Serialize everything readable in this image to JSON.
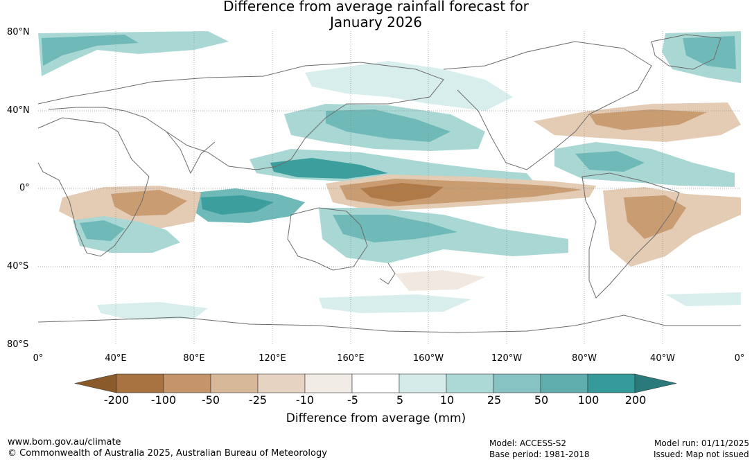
{
  "title": {
    "line1": "Difference from average rainfall forecast for",
    "line2": "January 2026"
  },
  "axes": {
    "lat_labels": [
      "80°N",
      "40°N",
      "0°",
      "40°S",
      "80°S"
    ],
    "lon_labels": [
      "0°",
      "40°E",
      "80°E",
      "120°E",
      "160°E",
      "160°W",
      "120°W",
      "80°W",
      "40°W",
      "0°"
    ]
  },
  "colorbar": {
    "title": "Difference from average (mm)",
    "tick_labels": [
      "-200",
      "-100",
      "-50",
      "-25",
      "-10",
      "-5",
      "5",
      "10",
      "25",
      "50",
      "100",
      "200"
    ],
    "colors": [
      "#8b5a2b",
      "#a87341",
      "#c4956a",
      "#d7b899",
      "#e6d3c1",
      "#f2ece7",
      "#ffffff",
      "#d5ebe9",
      "#acd8d6",
      "#86c3c2",
      "#5fadac",
      "#36999a",
      "#2a7a7b"
    ]
  },
  "colors": {
    "dry_strong": "#b07a48",
    "dry_mid": "#c99c72",
    "dry_light": "#e3cbb4",
    "dry_faint": "#f0e8e1",
    "wet_faint": "#d8eeec",
    "wet_light": "#a9d7d4",
    "wet_mid": "#6fbab8",
    "wet_strong": "#3c9e9d",
    "coast": "#6b6b6b",
    "grid": "#888888"
  },
  "footer": {
    "website": "www.bom.gov.au/climate",
    "copyright": "© Commonwealth of Australia 2025, Australian Bureau of Meteorology",
    "model": "Model: ACCESS-S2",
    "base_period": "Base period: 1981-2018",
    "model_run": "Model run: 01/11/2025",
    "issued": "Issued: Map not issued"
  }
}
